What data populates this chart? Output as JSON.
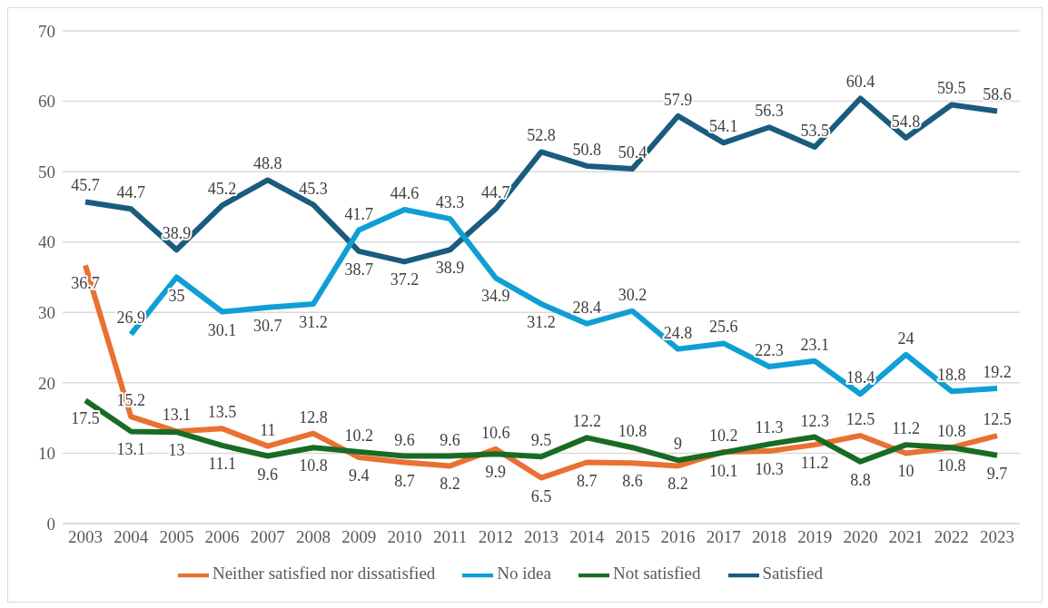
{
  "chart_data": {
    "type": "line",
    "categories": [
      "2003",
      "2004",
      "2005",
      "2006",
      "2007",
      "2008",
      "2009",
      "2010",
      "2011",
      "2012",
      "2013",
      "2014",
      "2015",
      "2016",
      "2017",
      "2018",
      "2019",
      "2020",
      "2021",
      "2022",
      "2023"
    ],
    "series": [
      {
        "name": "Satisfied",
        "color": "#1a5b7e",
        "values": [
          45.7,
          44.7,
          38.9,
          45.2,
          48.8,
          45.3,
          38.7,
          37.2,
          38.9,
          44.7,
          52.8,
          50.8,
          50.4,
          57.9,
          54.1,
          56.3,
          53.5,
          60.4,
          54.8,
          59.5,
          58.6
        ]
      },
      {
        "name": "Neither satisfied nor dissatisfied",
        "color": "#e97132",
        "values": [
          36.7,
          15.2,
          13.1,
          13.5,
          11,
          12.8,
          9.4,
          8.7,
          8.2,
          10.6,
          6.5,
          8.7,
          8.6,
          8.2,
          10.2,
          10.3,
          11.2,
          12.5,
          10,
          10.8,
          12.5
        ]
      },
      {
        "name": "Not satisfied",
        "color": "#196b24",
        "values": [
          17.5,
          13.1,
          13,
          11.1,
          9.6,
          10.8,
          10.2,
          9.6,
          9.6,
          9.9,
          9.5,
          12.2,
          10.8,
          9,
          10.1,
          11.3,
          12.3,
          8.8,
          11.2,
          10.8,
          9.7
        ]
      },
      {
        "name": "No idea",
        "color": "#0f9ed5",
        "values": [
          null,
          26.9,
          35,
          30.1,
          30.7,
          31.2,
          41.7,
          44.6,
          43.3,
          34.9,
          31.2,
          28.4,
          30.2,
          24.8,
          25.6,
          22.3,
          23.1,
          18.4,
          24,
          18.8,
          19.2
        ]
      }
    ],
    "ylim": [
      0,
      70
    ],
    "yticks": [
      0,
      10,
      20,
      30,
      40,
      50,
      60,
      70
    ],
    "grid": "y",
    "legend": "bottom",
    "data_labels": true,
    "marker": "none",
    "line_style": "solid"
  }
}
